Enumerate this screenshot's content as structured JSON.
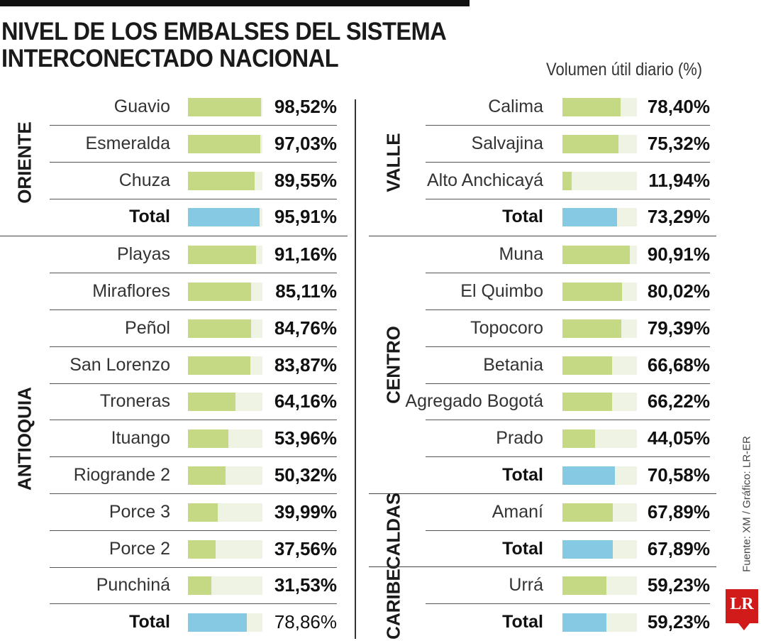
{
  "title_lines": [
    "NIVEL DE LOS EMBALSES DEL SISTEMA",
    "INTERCONECTADO NACIONAL"
  ],
  "unit_label": "Volumen útil diario (%)",
  "source": "Fuente: XM / Gráfico: LR-ER",
  "logo_text": "LR",
  "colors": {
    "reservoir_bar": "#c5d985",
    "total_bar": "#86c9e3",
    "track": "#eef3e4"
  },
  "chart_data": {
    "type": "bar",
    "title": "NIVEL DE LOS EMBALSES DEL SISTEMA INTERCONECTADO NACIONAL",
    "ylabel": "Volumen útil diario (%)",
    "ylim": [
      0,
      100
    ],
    "columns": [
      [
        {
          "region": "ORIENTE",
          "rows": [
            {
              "name": "Guavio",
              "value": 98.52,
              "label": "98,52%"
            },
            {
              "name": "Esmeralda",
              "value": 97.03,
              "label": "97,03%"
            },
            {
              "name": "Chuza",
              "value": 89.55,
              "label": "89,55%"
            },
            {
              "name": "Total",
              "value": 95.91,
              "label": "95,91%",
              "total": true
            }
          ]
        },
        {
          "region": "ANTIOQUIA",
          "rows": [
            {
              "name": "Playas",
              "value": 91.16,
              "label": "91,16%"
            },
            {
              "name": "Miraflores",
              "value": 85.11,
              "label": "85,11%"
            },
            {
              "name": "Peñol",
              "value": 84.76,
              "label": "84,76%"
            },
            {
              "name": "San Lorenzo",
              "value": 83.87,
              "label": "83,87%"
            },
            {
              "name": "Troneras",
              "value": 64.16,
              "label": "64,16%"
            },
            {
              "name": "Ituango",
              "value": 53.96,
              "label": "53,96%"
            },
            {
              "name": "Riogrande 2",
              "value": 50.32,
              "label": "50,32%"
            },
            {
              "name": "Porce 3",
              "value": 39.99,
              "label": "39,99%"
            },
            {
              "name": "Porce 2",
              "value": 37.56,
              "label": "37,56%"
            },
            {
              "name": "Punchiná",
              "value": 31.53,
              "label": "31,53%"
            },
            {
              "name": "Total",
              "value": 78.86,
              "label": "78,86%",
              "total": true,
              "light": true
            }
          ]
        }
      ],
      [
        {
          "region": "VALLE",
          "rows": [
            {
              "name": "Calima",
              "value": 78.4,
              "label": "78,40%"
            },
            {
              "name": "Salvajina",
              "value": 75.32,
              "label": "75,32%"
            },
            {
              "name": "Alto Anchicayá",
              "value": 11.94,
              "label": "11,94%"
            },
            {
              "name": "Total",
              "value": 73.29,
              "label": "73,29%",
              "total": true
            }
          ]
        },
        {
          "region": "CENTRO",
          "rows": [
            {
              "name": "Muna",
              "value": 90.91,
              "label": "90,91%"
            },
            {
              "name": "El Quimbo",
              "value": 80.02,
              "label": "80,02%"
            },
            {
              "name": "Topocoro",
              "value": 79.39,
              "label": "79,39%"
            },
            {
              "name": "Betania",
              "value": 66.68,
              "label": "66,68%"
            },
            {
              "name": "Agregado Bogotá",
              "value": 66.22,
              "label": "66,22%"
            },
            {
              "name": "Prado",
              "value": 44.05,
              "label": "44,05%"
            },
            {
              "name": "Total",
              "value": 70.58,
              "label": "70,58%",
              "total": true
            }
          ]
        },
        {
          "region": "CALDAS",
          "rows": [
            {
              "name": "Amaní",
              "value": 67.89,
              "label": "67,89%"
            },
            {
              "name": "Total",
              "value": 67.89,
              "label": "67,89%",
              "total": true
            }
          ]
        },
        {
          "region": "CARIBE",
          "rows": [
            {
              "name": "Urrá",
              "value": 59.23,
              "label": "59,23%"
            },
            {
              "name": "Total",
              "value": 59.23,
              "label": "59,23%",
              "total": true
            }
          ]
        }
      ]
    ]
  }
}
